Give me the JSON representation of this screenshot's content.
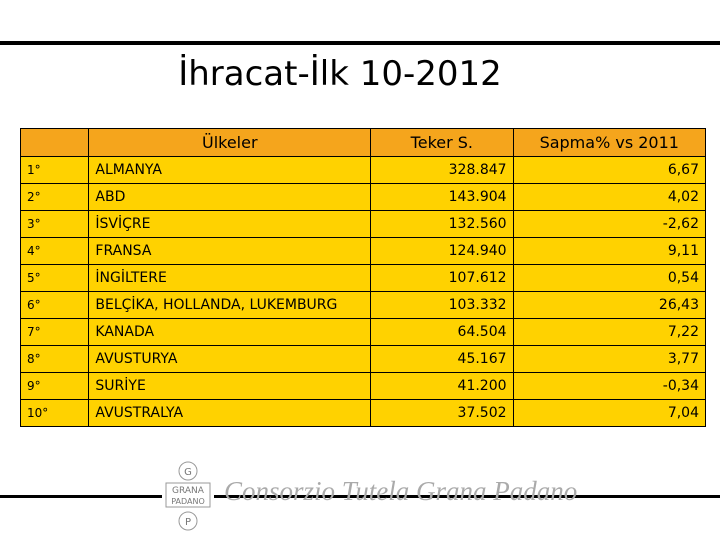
{
  "header": {
    "title": "İhracat-İlk 10-2012"
  },
  "table": {
    "columns": [
      "",
      "Ülkeler",
      "Teker S.",
      "Sapma% vs 2011"
    ],
    "rows": [
      [
        "1°",
        "ALMANYA",
        "328.847",
        "6,67"
      ],
      [
        "2°",
        "ABD",
        "143.904",
        "4,02"
      ],
      [
        "3°",
        "İSVİÇRE",
        "132.560",
        "-2,62"
      ],
      [
        "4°",
        "FRANSA",
        "124.940",
        "9,11"
      ],
      [
        "5°",
        "İNGİLTERE",
        "107.612",
        "0,54"
      ],
      [
        "6°",
        "BELÇİKA, HOLLANDA, LUKEMBURG",
        "103.332",
        "26,43"
      ],
      [
        "7°",
        "KANADA",
        "64.504",
        "7,22"
      ],
      [
        "8°",
        "AVUSTURYA",
        "45.167",
        "3,77"
      ],
      [
        "9°",
        "SURİYE",
        "41.200",
        "-0,34"
      ],
      [
        "10°",
        "AVUSTRALYA",
        "37.502",
        "7,04"
      ]
    ]
  },
  "footer": {
    "logo_top": "G",
    "logo_middle_1": "GRANA",
    "logo_middle_2": "PADANO",
    "logo_bottom": "P",
    "organization": "Consorzio Tutela Grana Padano"
  }
}
